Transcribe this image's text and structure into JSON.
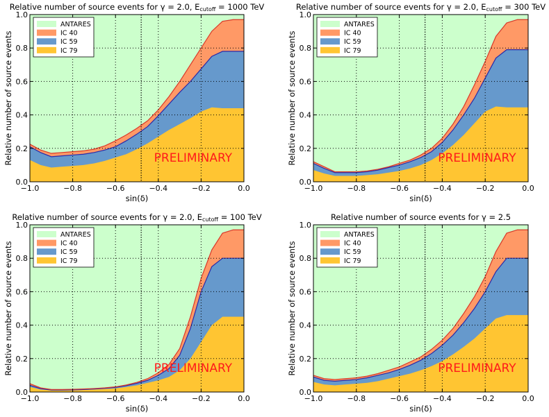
{
  "chart_data": [
    {
      "type": "area",
      "title_main": "Relative number of source events for γ = 2.0, E",
      "title_sub": "cutoff",
      "title_tail": " = 1000 TeV",
      "xlabel": "sin(δ)",
      "ylabel": "Relative number of source events",
      "xlim": [
        -1.0,
        0.0
      ],
      "ylim": [
        0.0,
        1.0
      ],
      "xticks": [
        "−1.0",
        "−0.8",
        "−0.6",
        "−0.4",
        "−0.2",
        "0.0"
      ],
      "yticks": [
        "0.0",
        "0.2",
        "0.4",
        "0.6",
        "0.8",
        "1.0"
      ],
      "grid": true,
      "vline": -0.48,
      "legend_position": "top-left",
      "watermark": "PRELIMINARY",
      "x": [
        -1.0,
        -0.95,
        -0.9,
        -0.85,
        -0.8,
        -0.75,
        -0.7,
        -0.65,
        -0.6,
        -0.55,
        -0.5,
        -0.45,
        -0.4,
        -0.35,
        -0.3,
        -0.25,
        -0.2,
        -0.15,
        -0.1,
        -0.05,
        0.0
      ],
      "series": [
        {
          "name": "IC 79",
          "color": "#ffc532",
          "values": [
            0.13,
            0.1,
            0.085,
            0.09,
            0.095,
            0.1,
            0.11,
            0.125,
            0.145,
            0.165,
            0.195,
            0.23,
            0.27,
            0.31,
            0.345,
            0.38,
            0.42,
            0.445,
            0.44,
            0.44,
            0.44
          ]
        },
        {
          "name": "IC 59",
          "color": "#6699cc",
          "values": [
            0.21,
            0.175,
            0.15,
            0.155,
            0.16,
            0.165,
            0.175,
            0.19,
            0.21,
            0.245,
            0.285,
            0.33,
            0.395,
            0.465,
            0.535,
            0.6,
            0.675,
            0.75,
            0.78,
            0.78,
            0.78
          ]
        },
        {
          "name": "IC 40",
          "color": "#ff9966",
          "values": [
            0.225,
            0.19,
            0.17,
            0.175,
            0.18,
            0.185,
            0.195,
            0.215,
            0.245,
            0.28,
            0.32,
            0.365,
            0.43,
            0.51,
            0.6,
            0.7,
            0.8,
            0.9,
            0.96,
            0.97,
            0.97
          ]
        },
        {
          "name": "ANTARES",
          "color": "#ccffcc",
          "values": [
            1,
            1,
            1,
            1,
            1,
            1,
            1,
            1,
            1,
            1,
            1,
            1,
            1,
            1,
            1,
            1,
            1,
            1,
            1,
            1,
            1
          ]
        }
      ]
    },
    {
      "type": "area",
      "title_main": "Relative number of source events for γ = 2.0, E",
      "title_sub": "cutoff",
      "title_tail": " = 300 TeV",
      "xlabel": "sin(δ)",
      "ylabel": "Relative number of source events",
      "xlim": [
        -1.0,
        0.0
      ],
      "ylim": [
        0.0,
        1.0
      ],
      "xticks": [
        "−1.0",
        "−0.8",
        "−0.6",
        "−0.4",
        "−0.2",
        "0.0"
      ],
      "yticks": [
        "0.0",
        "0.2",
        "0.4",
        "0.6",
        "0.8",
        "1.0"
      ],
      "grid": true,
      "vline": -0.48,
      "legend_position": "top-left",
      "watermark": "PRELIMINARY",
      "x": [
        -1.0,
        -0.95,
        -0.9,
        -0.85,
        -0.8,
        -0.75,
        -0.7,
        -0.65,
        -0.6,
        -0.55,
        -0.5,
        -0.45,
        -0.4,
        -0.35,
        -0.3,
        -0.25,
        -0.2,
        -0.15,
        -0.1,
        -0.05,
        0.0
      ],
      "series": [
        {
          "name": "IC 79",
          "color": "#ffc532",
          "values": [
            0.07,
            0.05,
            0.035,
            0.035,
            0.035,
            0.04,
            0.045,
            0.055,
            0.065,
            0.08,
            0.1,
            0.13,
            0.17,
            0.22,
            0.28,
            0.35,
            0.42,
            0.45,
            0.445,
            0.445,
            0.445
          ]
        },
        {
          "name": "IC 59",
          "color": "#6699cc",
          "values": [
            0.11,
            0.08,
            0.055,
            0.055,
            0.055,
            0.06,
            0.07,
            0.085,
            0.1,
            0.12,
            0.145,
            0.18,
            0.235,
            0.31,
            0.4,
            0.5,
            0.62,
            0.74,
            0.79,
            0.79,
            0.79
          ]
        },
        {
          "name": "IC 40",
          "color": "#ff9966",
          "values": [
            0.12,
            0.09,
            0.06,
            0.06,
            0.06,
            0.065,
            0.075,
            0.09,
            0.11,
            0.13,
            0.16,
            0.2,
            0.26,
            0.345,
            0.45,
            0.58,
            0.72,
            0.87,
            0.95,
            0.97,
            0.97
          ]
        },
        {
          "name": "ANTARES",
          "color": "#ccffcc",
          "values": [
            1,
            1,
            1,
            1,
            1,
            1,
            1,
            1,
            1,
            1,
            1,
            1,
            1,
            1,
            1,
            1,
            1,
            1,
            1,
            1,
            1
          ]
        }
      ]
    },
    {
      "type": "area",
      "title_main": "Relative number of source events for γ = 2.0, E",
      "title_sub": "cutoff",
      "title_tail": " = 100 TeV",
      "xlabel": "sin(δ)",
      "ylabel": "Relative number of source events",
      "xlim": [
        -1.0,
        0.0
      ],
      "ylim": [
        0.0,
        1.0
      ],
      "xticks": [
        "−1.0",
        "−0.8",
        "−0.6",
        "−0.4",
        "−0.2",
        "0.0"
      ],
      "yticks": [
        "0.0",
        "0.2",
        "0.4",
        "0.6",
        "0.8",
        "1.0"
      ],
      "grid": true,
      "vline": -0.48,
      "legend_position": "top-left",
      "watermark": "PRELIMINARY",
      "x": [
        -1.0,
        -0.95,
        -0.9,
        -0.85,
        -0.8,
        -0.75,
        -0.7,
        -0.65,
        -0.6,
        -0.55,
        -0.5,
        -0.45,
        -0.4,
        -0.35,
        -0.3,
        -0.25,
        -0.2,
        -0.15,
        -0.1,
        -0.05,
        0.0
      ],
      "series": [
        {
          "name": "IC 79",
          "color": "#ffc532",
          "values": [
            0.03,
            0.015,
            0.01,
            0.01,
            0.01,
            0.012,
            0.015,
            0.018,
            0.022,
            0.03,
            0.04,
            0.055,
            0.07,
            0.09,
            0.13,
            0.2,
            0.3,
            0.4,
            0.45,
            0.45,
            0.45
          ]
        },
        {
          "name": "IC 59",
          "color": "#6699cc",
          "values": [
            0.04,
            0.02,
            0.012,
            0.012,
            0.013,
            0.015,
            0.018,
            0.022,
            0.028,
            0.038,
            0.052,
            0.07,
            0.1,
            0.14,
            0.22,
            0.38,
            0.6,
            0.75,
            0.8,
            0.8,
            0.8
          ]
        },
        {
          "name": "IC 40",
          "color": "#ff9966",
          "values": [
            0.05,
            0.025,
            0.015,
            0.015,
            0.016,
            0.018,
            0.021,
            0.025,
            0.031,
            0.042,
            0.058,
            0.08,
            0.115,
            0.165,
            0.26,
            0.45,
            0.68,
            0.85,
            0.95,
            0.97,
            0.97
          ]
        },
        {
          "name": "ANTARES",
          "color": "#ccffcc",
          "values": [
            1,
            1,
            1,
            1,
            1,
            1,
            1,
            1,
            1,
            1,
            1,
            1,
            1,
            1,
            1,
            1,
            1,
            1,
            1,
            1,
            1
          ]
        }
      ]
    },
    {
      "type": "area",
      "title_main": "Relative number of source events for γ = 2.5",
      "title_sub": "",
      "title_tail": "",
      "xlabel": "sin(δ)",
      "ylabel": "Relative number of source events",
      "xlim": [
        -1.0,
        0.0
      ],
      "ylim": [
        0.0,
        1.0
      ],
      "xticks": [
        "−1.0",
        "−0.8",
        "−0.6",
        "−0.4",
        "−0.2",
        "0.0"
      ],
      "yticks": [
        "0.0",
        "0.2",
        "0.4",
        "0.6",
        "0.8",
        "1.0"
      ],
      "grid": true,
      "vline": -0.48,
      "legend_position": "top-left",
      "watermark": "PRELIMINARY",
      "x": [
        -1.0,
        -0.95,
        -0.9,
        -0.85,
        -0.8,
        -0.75,
        -0.7,
        -0.65,
        -0.6,
        -0.55,
        -0.5,
        -0.45,
        -0.4,
        -0.35,
        -0.3,
        -0.25,
        -0.2,
        -0.15,
        -0.1,
        -0.05,
        0.0
      ],
      "series": [
        {
          "name": "IC 79",
          "color": "#ffc532",
          "values": [
            0.06,
            0.045,
            0.04,
            0.045,
            0.05,
            0.055,
            0.065,
            0.08,
            0.095,
            0.11,
            0.13,
            0.155,
            0.185,
            0.225,
            0.27,
            0.32,
            0.38,
            0.44,
            0.46,
            0.46,
            0.46
          ]
        },
        {
          "name": "IC 59",
          "color": "#6699cc",
          "values": [
            0.09,
            0.07,
            0.065,
            0.07,
            0.075,
            0.085,
            0.1,
            0.115,
            0.135,
            0.16,
            0.19,
            0.23,
            0.28,
            0.34,
            0.415,
            0.5,
            0.6,
            0.72,
            0.8,
            0.8,
            0.8
          ]
        },
        {
          "name": "IC 40",
          "color": "#ff9966",
          "values": [
            0.1,
            0.08,
            0.075,
            0.08,
            0.085,
            0.095,
            0.11,
            0.13,
            0.15,
            0.18,
            0.21,
            0.255,
            0.31,
            0.38,
            0.47,
            0.57,
            0.69,
            0.84,
            0.95,
            0.97,
            0.97
          ]
        },
        {
          "name": "ANTARES",
          "color": "#ccffcc",
          "values": [
            1,
            1,
            1,
            1,
            1,
            1,
            1,
            1,
            1,
            1,
            1,
            1,
            1,
            1,
            1,
            1,
            1,
            1,
            1,
            1,
            1
          ]
        }
      ]
    }
  ]
}
